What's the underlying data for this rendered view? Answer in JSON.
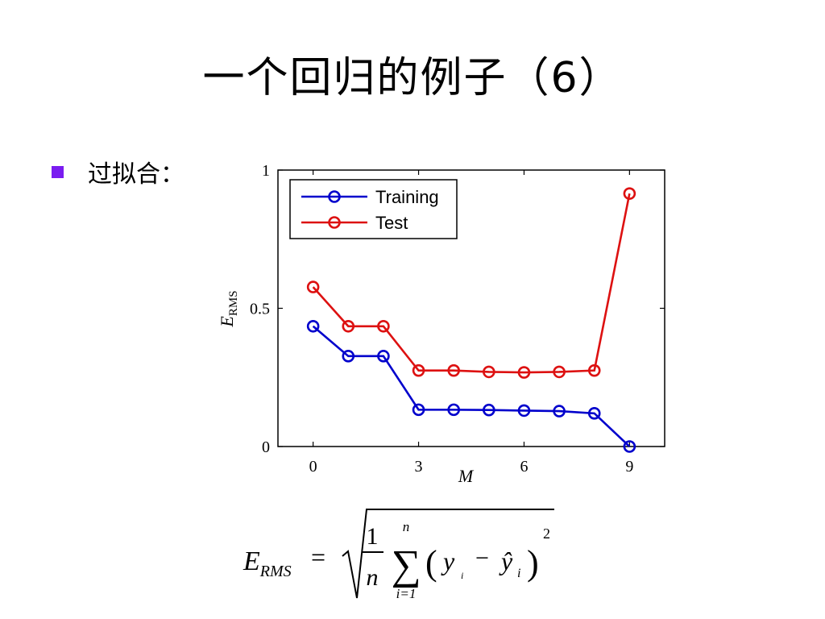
{
  "slide": {
    "title": "一个回归的例子（6）",
    "bullet_text": "过拟合："
  },
  "formula": {
    "lhs_symbol": "E",
    "lhs_subscript": "RMS",
    "equals": "=",
    "frac_num": "1",
    "frac_den": "n",
    "sum_upper": "n",
    "sum_lower": "i=1",
    "sum_symbol": "∑",
    "paren_open": "(",
    "paren_close": ")",
    "y_term": "y",
    "y_sub": "i",
    "minus": "−",
    "yhat_term": "ŷ",
    "yhat_sub": "i",
    "power": "2"
  },
  "chart_data": {
    "type": "line",
    "x": [
      0,
      1,
      2,
      3,
      4,
      5,
      6,
      7,
      8,
      9
    ],
    "series": [
      {
        "name": "Training",
        "color": "#0000cc",
        "values": [
          0.435,
          0.327,
          0.327,
          0.133,
          0.133,
          0.132,
          0.13,
          0.128,
          0.12,
          0.0
        ]
      },
      {
        "name": "Test",
        "color": "#dd1111",
        "values": [
          0.577,
          0.435,
          0.435,
          0.275,
          0.275,
          0.27,
          0.268,
          0.27,
          0.275,
          0.915
        ]
      }
    ],
    "xlim": [
      -1,
      10
    ],
    "ylim": [
      0,
      1
    ],
    "x_ticks": [
      "0",
      "3",
      "6",
      "9"
    ],
    "y_ticks": [
      "0",
      "0.5",
      "1"
    ],
    "xlabel": "M",
    "ylabel": "E",
    "ylabel_subscript": "RMS",
    "legend_position": "top-left",
    "grid": false
  }
}
